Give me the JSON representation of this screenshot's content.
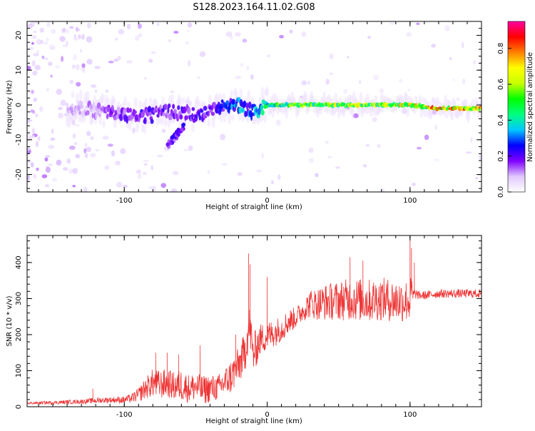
{
  "title": "S128.2023.164.11.02.G08",
  "chart_data": [
    {
      "type": "heatmap",
      "title": "S128.2023.164.11.02.G08",
      "xlabel": "Height of straight line (km)",
      "ylabel": "Frequency (Hz)",
      "xlim": [
        -168,
        150
      ],
      "ylim": [
        -25,
        24
      ],
      "xticks": [
        -100,
        0,
        100
      ],
      "yticks": [
        -20,
        -10,
        0,
        10,
        20
      ],
      "grid": false,
      "colorbar": {
        "label": "Normalized spectral amplitude",
        "range": [
          0,
          0.95
        ],
        "ticks": [
          "0.0",
          "0.2",
          "0.4",
          "0.6",
          "0.8"
        ],
        "tick_values": [
          0,
          0.2,
          0.4,
          0.6,
          0.8
        ],
        "colormap": [
          "#ffffff",
          "#e0c8ff",
          "#8000ff",
          "#0000ff",
          "#00c8ff",
          "#00ff80",
          "#00ff00",
          "#c8ff00",
          "#ffff00",
          "#ff8000",
          "#ff0000",
          "#ff00a0"
        ]
      },
      "ridge": {
        "description_points_x": [
          -130,
          -110,
          -90,
          -80,
          -70,
          -60,
          -50,
          -40,
          -30,
          -20,
          -15,
          -10,
          0,
          20,
          50,
          80,
          100,
          120,
          150
        ],
        "center_freq": [
          -1,
          -2,
          -3,
          -3,
          -2,
          -2,
          -3,
          -2,
          0,
          0,
          -1,
          -2,
          0,
          0,
          0,
          0,
          0,
          -1,
          -1
        ],
        "amplitude": [
          0.1,
          0.15,
          0.2,
          0.2,
          0.18,
          0.2,
          0.2,
          0.2,
          0.25,
          0.35,
          0.3,
          0.3,
          0.45,
          0.55,
          0.6,
          0.6,
          0.65,
          0.75,
          0.7
        ]
      },
      "branch": {
        "x": [
          -70,
          -66,
          -62,
          -58
        ],
        "freq": [
          -12,
          -10,
          -8,
          -6
        ]
      }
    },
    {
      "type": "line",
      "xlabel": "Height of straight line (km)",
      "ylabel": "SNR (10 * v/v)",
      "xlim": [
        -168,
        150
      ],
      "ylim": [
        0,
        475
      ],
      "xticks": [
        -100,
        0,
        100
      ],
      "yticks": [
        0,
        100,
        200,
        300,
        400
      ],
      "grid": false,
      "series": [
        {
          "color": "#ee3333",
          "x": [
            -168,
            -150,
            -130,
            -120,
            -110,
            -100,
            -95,
            -90,
            -85,
            -80,
            -75,
            -70,
            -65,
            -60,
            -55,
            -50,
            -45,
            -40,
            -35,
            -30,
            -25,
            -20,
            -16,
            -14,
            -12,
            -10,
            -5,
            0,
            5,
            10,
            15,
            20,
            25,
            30,
            35,
            40,
            50,
            60,
            70,
            80,
            90,
            100,
            101,
            102,
            104,
            106,
            110,
            120,
            130,
            140,
            150
          ],
          "y": [
            10,
            12,
            15,
            18,
            20,
            20,
            25,
            35,
            55,
            70,
            65,
            70,
            60,
            65,
            55,
            60,
            50,
            55,
            55,
            70,
            90,
            120,
            150,
            200,
            230,
            150,
            190,
            200,
            210,
            220,
            240,
            250,
            270,
            290,
            290,
            295,
            300,
            305,
            300,
            305,
            300,
            300,
            330,
            310,
            315,
            310,
            310,
            315,
            315,
            315,
            315
          ],
          "noise": [
            3,
            5,
            6,
            8,
            8,
            10,
            12,
            20,
            30,
            40,
            40,
            40,
            40,
            45,
            40,
            40,
            40,
            40,
            35,
            40,
            50,
            50,
            60,
            60,
            60,
            60,
            45,
            40,
            40,
            35,
            35,
            30,
            30,
            40,
            45,
            50,
            55,
            60,
            60,
            60,
            60,
            60,
            40,
            20,
            15,
            12,
            12,
            12,
            12,
            12,
            12
          ],
          "spikes": [
            {
              "x": -122,
              "y": 50
            },
            {
              "x": -78,
              "y": 150
            },
            {
              "x": -70,
              "y": 150
            },
            {
              "x": -62,
              "y": 145
            },
            {
              "x": -47,
              "y": 170
            },
            {
              "x": -22,
              "y": 200
            },
            {
              "x": -13,
              "y": 425
            },
            {
              "x": -12,
              "y": 395
            },
            {
              "x": 0,
              "y": 360
            },
            {
              "x": 58,
              "y": 415
            },
            {
              "x": 67,
              "y": 405
            },
            {
              "x": 100,
              "y": 475
            },
            {
              "x": 101,
              "y": 440
            },
            {
              "x": 103,
              "y": 400
            }
          ]
        }
      ]
    }
  ]
}
